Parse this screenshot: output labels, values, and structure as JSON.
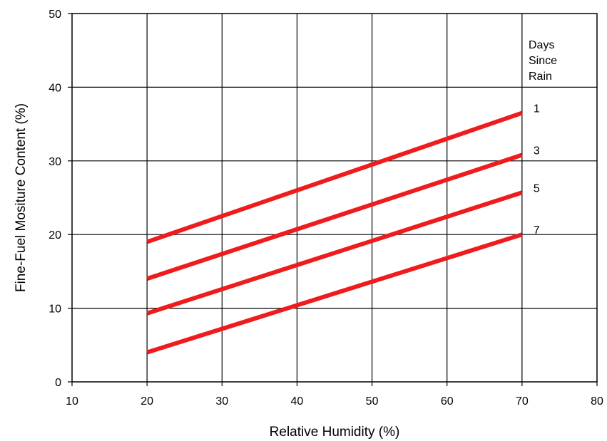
{
  "chart_data": {
    "type": "line",
    "title": "",
    "xlabel": "Relative Humidity (%)",
    "ylabel": "Fine-Fuel Mositure Content (%)",
    "xlim": [
      10,
      80
    ],
    "ylim": [
      0,
      50
    ],
    "x_ticks": [
      10,
      20,
      30,
      40,
      50,
      60,
      70,
      80
    ],
    "y_ticks": [
      0,
      10,
      20,
      30,
      40,
      50
    ],
    "grid": true,
    "legend_title": [
      "Days",
      "Since",
      "Rain"
    ],
    "legend_placement": "top-right",
    "series_color": "#ee1c1c",
    "series": [
      {
        "name": "1",
        "x": [
          20,
          70
        ],
        "y": [
          19,
          36.5
        ]
      },
      {
        "name": "3",
        "x": [
          20,
          70
        ],
        "y": [
          14,
          30.8
        ]
      },
      {
        "name": "5",
        "x": [
          20,
          70
        ],
        "y": [
          9.3,
          25.7
        ]
      },
      {
        "name": "7",
        "x": [
          20,
          70
        ],
        "y": [
          4,
          20
        ]
      }
    ]
  }
}
